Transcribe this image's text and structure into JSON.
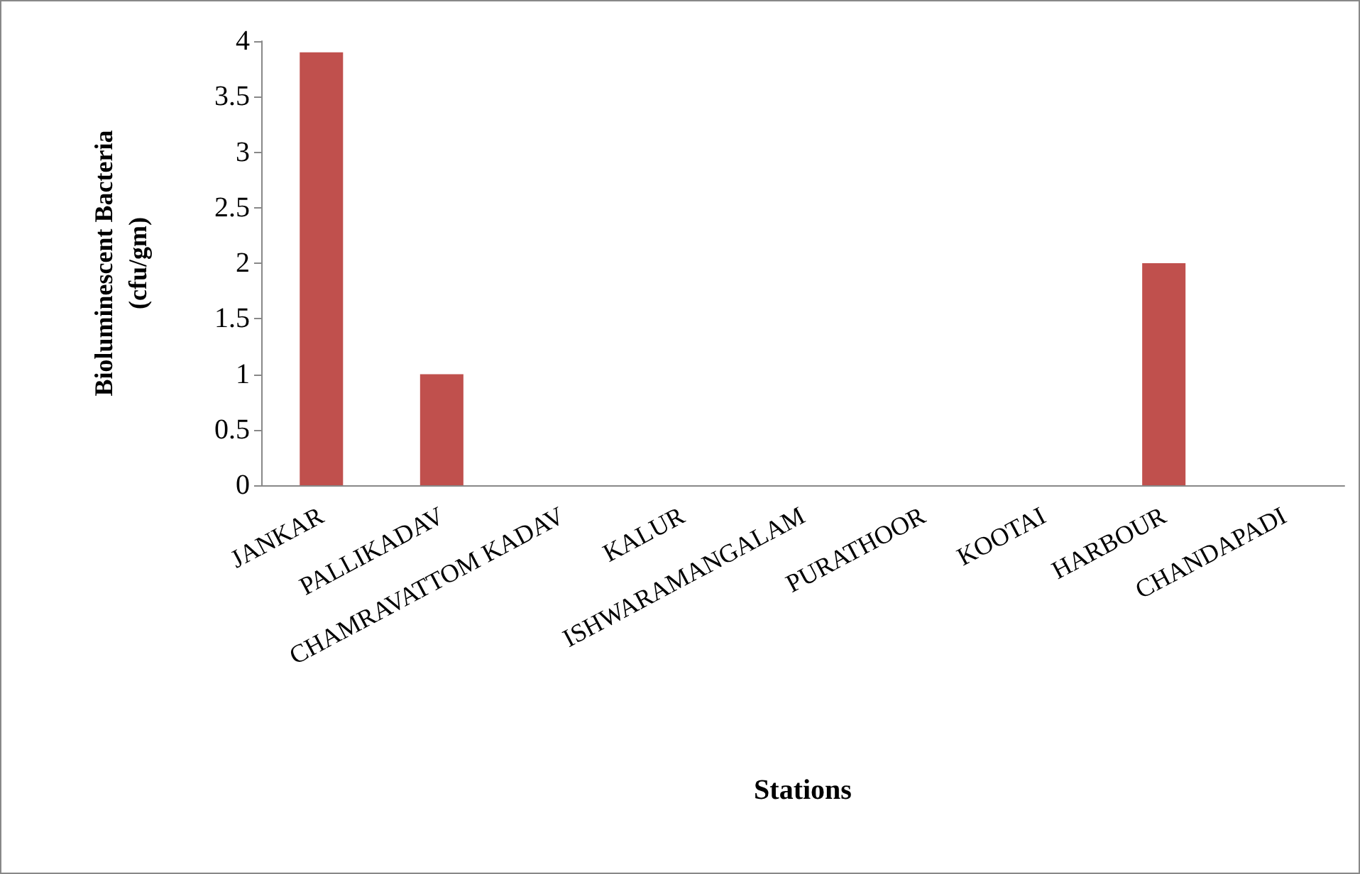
{
  "chart_data": {
    "type": "bar",
    "xlabel": "Stations",
    "ylabel": "Bioluminescent Bacteria (cfu/gm)",
    "categories": [
      "JANKAR",
      "PALLIKADAV",
      "CHAMRAVATTOM KADAV",
      "KALUR",
      "ISHWARAMANGALAM",
      "PURATHOOR",
      "KOOTAI",
      "HARBOUR",
      "CHANDAPADI"
    ],
    "values": [
      3.9,
      1,
      0,
      0,
      0,
      0,
      0,
      2,
      0
    ],
    "color": "#c0504d",
    "ylim": [
      0,
      4
    ],
    "yticks": [
      0,
      0.5,
      1,
      1.5,
      2,
      2.5,
      3,
      3.5,
      4
    ],
    "grid": false
  }
}
